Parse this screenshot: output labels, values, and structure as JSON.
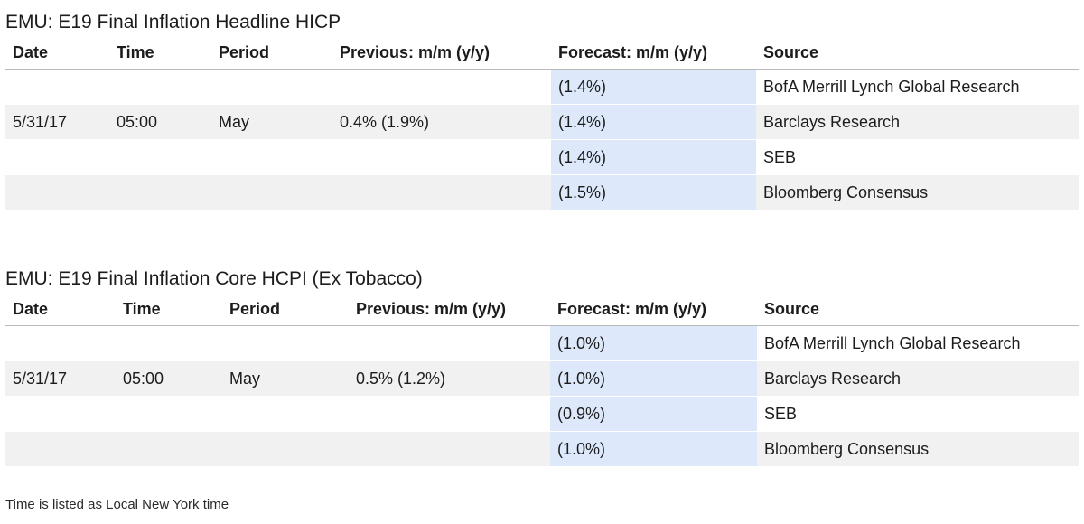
{
  "tables": [
    {
      "title": "EMU: E19 Final Inflation Headline HICP",
      "headers": [
        "Date",
        "Time",
        "Period",
        "Previous: m/m (y/y)",
        "Forecast: m/m (y/y)",
        "Source"
      ],
      "rows": [
        {
          "date": "",
          "time": "",
          "period": "",
          "previous": "",
          "forecast": "(1.4%)",
          "source": "BofA Merrill Lynch Global Research"
        },
        {
          "date": "5/31/17",
          "time": "05:00",
          "period": "May",
          "previous": "0.4% (1.9%)",
          "forecast": "(1.4%)",
          "source": "Barclays Research"
        },
        {
          "date": "",
          "time": "",
          "period": "",
          "previous": "",
          "forecast": "(1.4%)",
          "source": "SEB"
        },
        {
          "date": "",
          "time": "",
          "period": "",
          "previous": "",
          "forecast": "(1.5%)",
          "source": "Bloomberg Consensus"
        }
      ]
    },
    {
      "title": "EMU: E19 Final Inflation Core HCPI (Ex Tobacco)",
      "headers": [
        "Date",
        "Time",
        "Period",
        "Previous: m/m (y/y)",
        "Forecast: m/m (y/y)",
        "Source"
      ],
      "rows": [
        {
          "date": "",
          "time": "",
          "period": "",
          "previous": "",
          "forecast": "(1.0%)",
          "source": "BofA Merrill Lynch Global Research"
        },
        {
          "date": "5/31/17",
          "time": "05:00",
          "period": "May",
          "previous": "0.5% (1.2%)",
          "forecast": "(1.0%)",
          "source": "Barclays Research"
        },
        {
          "date": "",
          "time": "",
          "period": "",
          "previous": "",
          "forecast": "(0.9%)",
          "source": "SEB"
        },
        {
          "date": "",
          "time": "",
          "period": "",
          "previous": "",
          "forecast": "(1.0%)",
          "source": "Bloomberg Consensus"
        }
      ]
    }
  ],
  "footnote": "Time is listed as Local New York time",
  "colors": {
    "forecast_highlight": "#dde8fb",
    "row_stripe": "#f1f1f1"
  }
}
